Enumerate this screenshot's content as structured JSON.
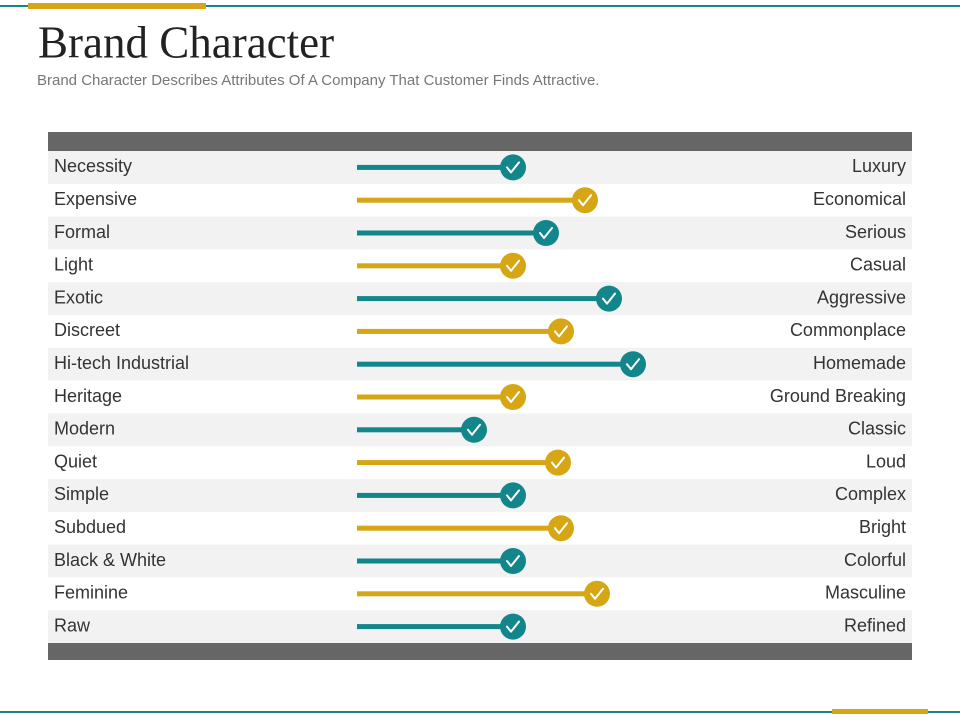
{
  "header": {
    "title": "Brand Character",
    "subtitle": "Brand Character Describes Attributes Of A Company That Customer Finds Attractive."
  },
  "table": {
    "range": [
      0,
      100
    ],
    "colors": [
      "#12868b",
      "#d6a614"
    ],
    "rows": [
      {
        "left": "Necessity",
        "right": "Luxury",
        "value": 52
      },
      {
        "left": "Expensive",
        "right": "Economical",
        "value": 76
      },
      {
        "left": "Formal",
        "right": "Serious",
        "value": 63
      },
      {
        "left": "Light",
        "right": "Casual",
        "value": 52
      },
      {
        "left": "Exotic",
        "right": "Aggressive",
        "value": 84
      },
      {
        "left": "Discreet",
        "right": "Commonplace",
        "value": 68
      },
      {
        "left": "Hi-tech Industrial",
        "right": "Homemade",
        "value": 92
      },
      {
        "left": "Heritage",
        "right": "Ground Breaking",
        "value": 52
      },
      {
        "left": "Modern",
        "right": "Classic",
        "value": 39
      },
      {
        "left": "Quiet",
        "right": "Loud",
        "value": 67
      },
      {
        "left": "Simple",
        "right": "Complex",
        "value": 52
      },
      {
        "left": "Subdued",
        "right": "Bright",
        "value": 68
      },
      {
        "left": "Black & White",
        "right": "Colorful",
        "value": 52
      },
      {
        "left": "Feminine",
        "right": "Masculine",
        "value": 80
      },
      {
        "left": "Raw",
        "right": "Refined",
        "value": 52
      }
    ]
  }
}
